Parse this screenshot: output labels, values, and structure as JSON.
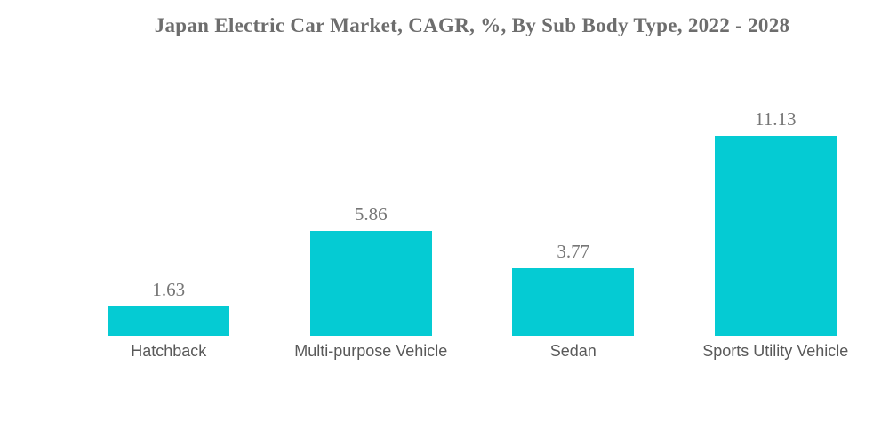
{
  "header": {
    "title": "Japan Electric Car Market, CAGR, %, By Sub Body Type, 2022 - 2028"
  },
  "chart_data": {
    "type": "bar",
    "title": "Japan Electric Car Market, CAGR, %, By Sub Body Type, 2022 - 2028",
    "categories": [
      "Hatchback",
      "Multi-purpose Vehicle",
      "Sedan",
      "Sports Utility Vehicle"
    ],
    "values": [
      1.63,
      5.86,
      3.77,
      11.13
    ],
    "value_labels": [
      "1.63",
      "5.86",
      "3.77",
      "11.13"
    ],
    "xlabel": "",
    "ylabel": "",
    "ylim": [
      0,
      12
    ],
    "grid": false,
    "legend": false,
    "bar_color": "#05CBD3",
    "title_color": "#6d6d6d",
    "value_label_color": "#767676",
    "category_label_color": "#595959",
    "background_color": "#ffffff"
  }
}
